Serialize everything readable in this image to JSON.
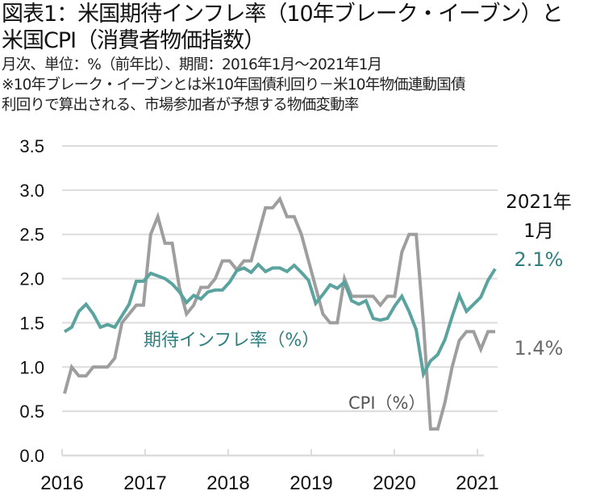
{
  "title_line1": "図表1：米国期待インフレ率（10年ブレーク・イーブン）と",
  "title_line2": "米国CPI（消費者物価指数）",
  "subtitle_line1": "月次、単位：%（前年比）、期間：2016年1月～2021年1月",
  "note_line1": "※10年ブレーク・イーブンとは米10年国債利回り－米10年物価連動国債",
  "note_line2": "利回りで算出される、市場参加者が予想する物価変動率",
  "colors": {
    "breakeven": "#5aa39f",
    "breakeven_label": "#2e7f7f",
    "cpi": "#9e9e9e",
    "cpi_label": "#6b6b6b",
    "grid": "#dcdcdc"
  },
  "chart_data": {
    "type": "line",
    "title": "米国期待インフレ率（10年ブレーク・イーブン）と米国CPI（消費者物価指数）",
    "xlabel": "",
    "ylabel": "",
    "ylim": [
      0.0,
      3.5
    ],
    "yticks": [
      "0.0",
      "0.5",
      "1.0",
      "1.5",
      "2.0",
      "2.5",
      "3.0",
      "3.5"
    ],
    "ytick_values": [
      0.0,
      0.5,
      1.0,
      1.5,
      2.0,
      2.5,
      3.0,
      3.5
    ],
    "xticks": [
      "2016",
      "2017",
      "2018",
      "2019",
      "2020",
      "2021"
    ],
    "x_start": "2016-01",
    "x_end": "2021-01",
    "frequency": "monthly",
    "grid": true,
    "series": [
      {
        "name": "期待インフレ率（%）",
        "key": "breakeven",
        "values": [
          1.4,
          1.45,
          1.63,
          1.71,
          1.6,
          1.45,
          1.48,
          1.45,
          1.58,
          1.71,
          1.97,
          1.97,
          2.06,
          2.03,
          2.0,
          1.94,
          1.85,
          1.73,
          1.81,
          1.77,
          1.85,
          1.87,
          1.87,
          1.96,
          2.09,
          2.12,
          2.07,
          2.16,
          2.08,
          2.12,
          2.12,
          2.08,
          2.15,
          2.07,
          1.98,
          1.72,
          1.82,
          1.93,
          1.89,
          1.96,
          1.75,
          1.71,
          1.75,
          1.55,
          1.53,
          1.55,
          1.69,
          1.8,
          1.63,
          1.42,
          0.92,
          1.07,
          1.14,
          1.31,
          1.57,
          1.81,
          1.63,
          1.71,
          1.79,
          1.98,
          2.11
        ]
      },
      {
        "name": "CPI（%）",
        "key": "cpi",
        "values": [
          0.7,
          1.0,
          0.9,
          0.9,
          1.0,
          1.0,
          1.0,
          1.1,
          1.5,
          1.6,
          1.7,
          1.7,
          2.5,
          2.7,
          2.4,
          2.4,
          1.9,
          1.6,
          1.7,
          1.9,
          1.9,
          2.0,
          2.2,
          2.2,
          2.1,
          2.2,
          2.2,
          2.5,
          2.8,
          2.8,
          2.9,
          2.7,
          2.7,
          2.5,
          2.2,
          1.9,
          1.6,
          1.5,
          1.5,
          2.0,
          1.8,
          1.8,
          1.8,
          1.8,
          1.7,
          1.8,
          1.8,
          2.3,
          2.5,
          2.5,
          1.5,
          0.3,
          0.3,
          0.6,
          1.0,
          1.3,
          1.4,
          1.4,
          1.2,
          1.4,
          1.4
        ]
      }
    ],
    "annotations": {
      "latest_date_line1": "2021年",
      "latest_date_line2": "1月",
      "latest_breakeven": "2.1%",
      "latest_cpi": "1.4%",
      "breakeven_label": "期待インフレ率（%）",
      "cpi_label": "CPI（%）"
    }
  }
}
